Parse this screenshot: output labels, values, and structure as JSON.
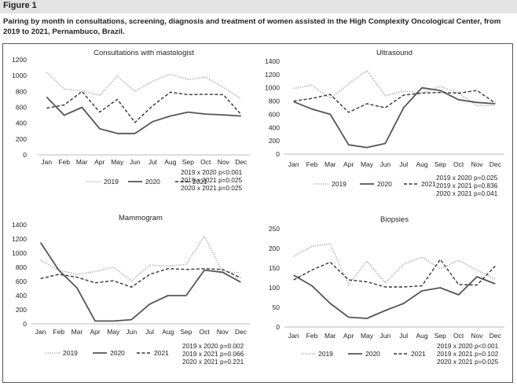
{
  "figure": {
    "label": "Figure 1",
    "caption": "Pairing by month in consultations, screening, diagnosis and treatment of women assisted in the High Complexity Oncological Center, from 2019 to 2021, Pernambuco, Brazil."
  },
  "series_styles": [
    {
      "name": "2019",
      "color": "#aaaaaa",
      "dash": "dotted",
      "width": 1.6
    },
    {
      "name": "2020",
      "color": "#555555",
      "dash": "solid",
      "width": 1.8
    },
    {
      "name": "2021",
      "color": "#333333",
      "dash": "dashed",
      "width": 1.4
    }
  ],
  "chart_data": [
    {
      "type": "line",
      "title": "Consultations with mastologist",
      "categories": [
        "Jan",
        "Feb",
        "Mar",
        "Apr",
        "May",
        "Jun",
        "Jul",
        "Aug",
        "Sep",
        "Oct",
        "Nov",
        "Dec"
      ],
      "ylim": [
        0,
        1200
      ],
      "yticks": [
        0,
        200,
        400,
        600,
        800,
        1000,
        1200
      ],
      "grid": false,
      "legend": "bottom",
      "series": [
        {
          "name": "2019",
          "values": [
            1040,
            830,
            810,
            750,
            990,
            800,
            930,
            1020,
            950,
            980,
            850,
            710
          ]
        },
        {
          "name": "2020",
          "values": [
            730,
            500,
            600,
            330,
            270,
            270,
            420,
            490,
            540,
            515,
            505,
            490
          ]
        },
        {
          "name": "2021",
          "values": [
            590,
            630,
            800,
            540,
            700,
            410,
            620,
            790,
            760,
            765,
            760,
            510
          ]
        }
      ],
      "stats": [
        "2019 x 2020 p<0.001",
        "2019 x 2021 p=0.025",
        "2020 x 2021 p=0.025"
      ]
    },
    {
      "type": "line",
      "title": "Ultrasound",
      "categories": [
        "Jan",
        "Feb",
        "Mar",
        "Apr",
        "May",
        "Jun",
        "Jul",
        "Aug",
        "Sep",
        "Oct",
        "Nov",
        "Dec"
      ],
      "ylim": [
        0,
        1400
      ],
      "yticks": [
        0,
        200,
        400,
        600,
        800,
        1000,
        1200,
        1400
      ],
      "grid": false,
      "legend": "bottom",
      "series": [
        {
          "name": "2019",
          "values": [
            990,
            1040,
            840,
            1060,
            1260,
            880,
            950,
            920,
            1020,
            920,
            730,
            740
          ]
        },
        {
          "name": "2020",
          "values": [
            790,
            680,
            600,
            140,
            100,
            160,
            700,
            1000,
            960,
            820,
            780,
            760
          ]
        },
        {
          "name": "2021",
          "values": [
            800,
            840,
            900,
            630,
            760,
            700,
            890,
            920,
            930,
            920,
            960,
            770
          ]
        }
      ],
      "stats": [
        "2019 x 2020 p=0.025",
        "2019 x 2021 p=0.836",
        "2020 x 2021 p=0.041"
      ]
    },
    {
      "type": "line",
      "title": "Mammogram",
      "categories": [
        "Jan",
        "Feb",
        "Mar",
        "Apr",
        "May",
        "Jun",
        "Jul",
        "Aug",
        "Sep",
        "Oct",
        "Nov",
        "Dec"
      ],
      "ylim": [
        0,
        1400
      ],
      "yticks": [
        0,
        200,
        400,
        600,
        800,
        1000,
        1200,
        1400
      ],
      "grid": false,
      "legend": "bottom",
      "series": [
        {
          "name": "2019",
          "values": [
            900,
            760,
            700,
            740,
            800,
            610,
            830,
            820,
            840,
            1240,
            740,
            720
          ]
        },
        {
          "name": "2020",
          "values": [
            1150,
            760,
            510,
            40,
            40,
            60,
            280,
            400,
            400,
            760,
            730,
            590
          ]
        },
        {
          "name": "2021",
          "values": [
            640,
            700,
            660,
            580,
            610,
            520,
            700,
            780,
            770,
            780,
            770,
            650
          ]
        }
      ],
      "stats": [
        "2019 x 2020 p=0.002",
        "2019 x 2021 p=0.066",
        "2020 x 2021 p=0.221"
      ]
    },
    {
      "type": "line",
      "title": "Biopsies",
      "categories": [
        "Jan",
        "Feb",
        "Mar",
        "Apr",
        "May",
        "Jun",
        "Jul",
        "Aug",
        "Sep",
        "Oct",
        "Nov",
        "Dec"
      ],
      "ylim": [
        0,
        250
      ],
      "yticks": [
        0,
        50,
        100,
        150,
        200,
        250
      ],
      "grid": false,
      "legend": "bottom",
      "series": [
        {
          "name": "2019",
          "values": [
            180,
            205,
            212,
            108,
            168,
            112,
            160,
            178,
            148,
            170,
            145,
            122
          ]
        },
        {
          "name": "2020",
          "values": [
            132,
            105,
            60,
            25,
            22,
            42,
            60,
            92,
            100,
            82,
            128,
            110
          ]
        },
        {
          "name": "2021",
          "values": [
            120,
            145,
            165,
            120,
            115,
            102,
            102,
            105,
            172,
            108,
            107,
            155
          ]
        }
      ],
      "stats": [
        "2019 x 2020 p<0.001",
        "2019 x 2021 p=0.102",
        "2020 x 2021 p=0.025"
      ]
    }
  ]
}
